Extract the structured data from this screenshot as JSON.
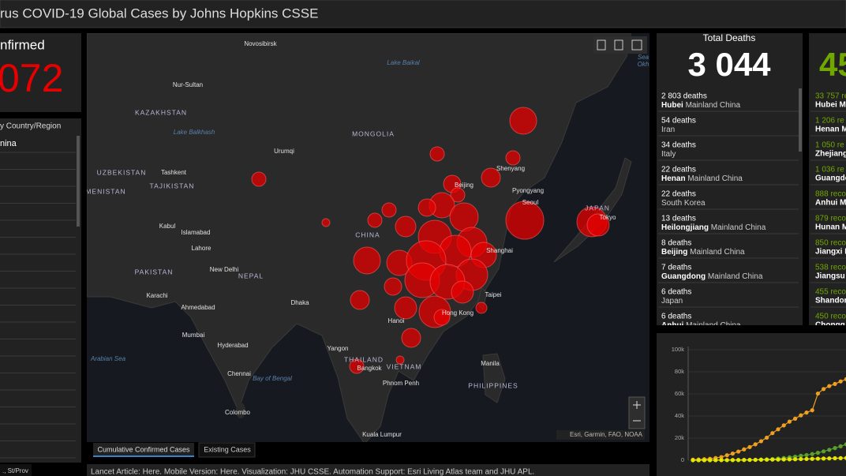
{
  "header": {
    "title": "rus COVID-19 Global Cases by Johns Hopkins CSSE"
  },
  "confirmed": {
    "label": "nfirmed",
    "total": "072"
  },
  "country_list": {
    "header": "y Country/Region",
    "rows": [
      "nina"
    ],
    "footer": "., St/Prov"
  },
  "map": {
    "countries": [
      "KAZAKHSTAN",
      "MONGOLIA",
      "UZBEKISTAN",
      "TAJIKISTAN",
      "MENISTAN",
      "PAKISTAN",
      "NEPAL",
      "CHINA",
      "THAILAND",
      "VIETNAM",
      "PHILIPPINES",
      "JAPAN"
    ],
    "cities": [
      "Novosibirsk",
      "Nur-Sultan",
      "Urumqi",
      "Tashkent",
      "Kabul",
      "Islamabad",
      "Lahore",
      "New Delhi",
      "Karachi",
      "Ahmedabad",
      "Mumbai",
      "Hyderabad",
      "Dhaka",
      "Chennai",
      "Colombo",
      "Yangon",
      "Bangkok",
      "Phnom Penh",
      "Kuala Lumpur",
      "Manila",
      "Hanoi",
      "Taipei",
      "Hong Kong",
      "Shanghai",
      "Beijing",
      "Shenyang",
      "Pyongyang",
      "Seoul",
      "Tokyo"
    ],
    "water": [
      "Lake Balkhash",
      "Lake Baikal",
      "Arabian Sea",
      "Bay of Bengal",
      "Sea",
      "Okh"
    ],
    "attribution": "Esri, Garmin, FAO, NOAA",
    "tabs": [
      "Cumulative Confirmed Cases",
      "Existing Cases"
    ]
  },
  "footer": "Lancet Article: Here. Mobile Version: Here. Visualization: JHU CSSE. Automation Support: Esri Living Atlas team and JHU APL.",
  "deaths": {
    "title": "Total Deaths",
    "total": "3 044",
    "rows": [
      {
        "count": "2 803 deaths",
        "place": "Hubei",
        "region": "Mainland China"
      },
      {
        "count": "54 deaths",
        "place": "Iran"
      },
      {
        "count": "34 deaths",
        "place": "Italy"
      },
      {
        "count": "22 deaths",
        "place": "Henan",
        "region": "Mainland China"
      },
      {
        "count": "22 deaths",
        "place": "South Korea"
      },
      {
        "count": "13 deaths",
        "place": "Heilongjiang",
        "region": "Mainland China"
      },
      {
        "count": "8 deaths",
        "place": "Beijing",
        "region": "Mainland China"
      },
      {
        "count": "7 deaths",
        "place": "Guangdong",
        "region": "Mainland China"
      },
      {
        "count": "6 deaths",
        "place": "Japan"
      },
      {
        "count": "6 deaths",
        "place": "Anhui",
        "region": "Mainland China"
      }
    ]
  },
  "recovered": {
    "total": "45",
    "rows": [
      {
        "count": "33 757 re",
        "place": "Hubei Ma"
      },
      {
        "count": "1 206 re",
        "place": "Henan M"
      },
      {
        "count": "1 050 re",
        "place": "Zhejiang"
      },
      {
        "count": "1 036 re",
        "place": "Guangdo"
      },
      {
        "count": "888 reco",
        "place": "Anhui M"
      },
      {
        "count": "879 reco",
        "place": "Hunan M"
      },
      {
        "count": "850 reco",
        "place": "Jiangxi M"
      },
      {
        "count": "538 reco",
        "place": "Jiangsu M"
      },
      {
        "count": "455 reco",
        "place": "Shandon"
      },
      {
        "count": "450 reco",
        "place": "Chongq"
      }
    ]
  },
  "chart": {
    "type": "line",
    "ylim": [
      0,
      100000
    ],
    "yticks": [
      0,
      {
        "value": 20000,
        "label": "20k"
      },
      {
        "value": 40000,
        "label": "40k"
      },
      {
        "value": 60000,
        "label": "60k"
      },
      {
        "value": 80000,
        "label": "80k"
      },
      {
        "value": 100000,
        "label": "100k"
      }
    ],
    "series": [
      {
        "color": "#f0a020",
        "values": [
          500,
          600,
          900,
          1300,
          2000,
          2800,
          4500,
          6000,
          7800,
          9800,
          11900,
          14400,
          17200,
          20400,
          24500,
          28000,
          31500,
          34900,
          37600,
          40600,
          43100,
          45200,
          60300,
          64400,
          67100,
          69000,
          71300,
          73300
        ]
      },
      {
        "color": "#5aa02c",
        "values": [
          0,
          0,
          0,
          0,
          100,
          100,
          100,
          100,
          100,
          200,
          300,
          400,
          600,
          800,
          1100,
          1500,
          2000,
          2600,
          3200,
          4000,
          4700,
          5600,
          6700,
          8000,
          9400,
          11000,
          12600,
          14400
        ]
      },
      {
        "color": "#e6e600",
        "values": [
          20,
          30,
          40,
          60,
          80,
          110,
          130,
          170,
          210,
          260,
          300,
          360,
          420,
          490,
          560,
          640,
          720,
          810,
          900,
          1020,
          1110,
          1260,
          1370,
          1520,
          1660,
          1770,
          1870,
          2010
        ]
      }
    ]
  }
}
